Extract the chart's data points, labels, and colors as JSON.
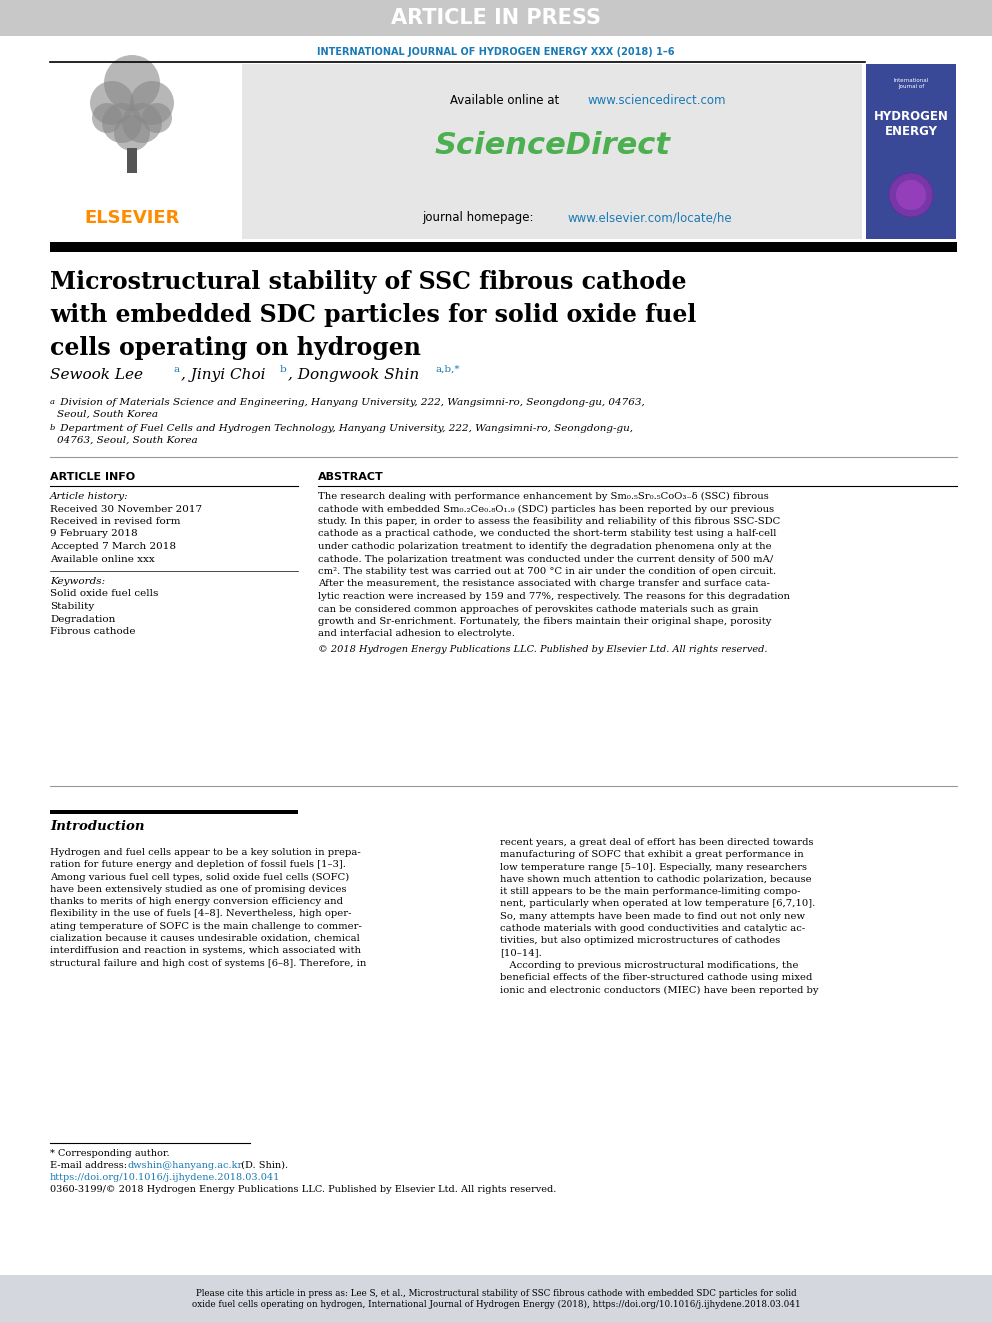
{
  "article_in_press_text": "ARTICLE IN PRESS",
  "article_in_press_bg": "#c8c8c8",
  "journal_name": "INTERNATIONAL JOURNAL OF HYDROGEN ENERGY XXX (2018) 1–6",
  "journal_color": "#1a7ab5",
  "sciencedirect_url": "www.sciencedirect.com",
  "sciencedirect_logo": "ScienceDirect",
  "sciencedirect_color": "#4caf50",
  "journal_homepage_url": "www.elsevier.com/locate/he",
  "elsevier_color": "#ff8c00",
  "header_bg": "#e6e6e6",
  "paper_title_line1": "Microstructural stability of SSC fibrous cathode",
  "paper_title_line2": "with embedded SDC particles for solid oxide fuel",
  "paper_title_line3": "cells operating on hydrogen",
  "affil_a_sup": "a",
  "affil_a": " Division of Materials Science and Engineering, Hanyang University, 222, Wangsimni-ro, Seongdong-gu, 04763,",
  "affil_a2": "Seoul, South Korea",
  "affil_b_sup": "b",
  "affil_b": " Department of Fuel Cells and Hydrogen Technology, Hanyang University, 222, Wangsimni-ro, Seongdong-gu,",
  "affil_b2": "04763, Seoul, South Korea",
  "article_info_title": "ARTICLE INFO",
  "article_history_title": "Article history:",
  "received_text": "Received 30 November 2017",
  "revised_text1": "Received in revised form",
  "revised_text2": "9 February 2018",
  "accepted_text": "Accepted 7 March 2018",
  "available_text": "Available online xxx",
  "keywords_title": "Keywords:",
  "keywords": [
    "Solid oxide fuel cells",
    "Stability",
    "Degradation",
    "Fibrous cathode"
  ],
  "abstract_title": "ABSTRACT",
  "abstract_lines": [
    "The research dealing with performance enhancement by Sm₀.₅Sr₀.₅CoO₃₋δ (SSC) fibrous",
    "cathode with embedded Sm₀.₂Ce₀.₈O₁.₉ (SDC) particles has been reported by our previous",
    "study. In this paper, in order to assess the feasibility and reliability of this fibrous SSC-SDC",
    "cathode as a practical cathode, we conducted the short-term stability test using a half-cell",
    "under cathodic polarization treatment to identify the degradation phenomena only at the",
    "cathode. The polarization treatment was conducted under the current density of 500 mA/",
    "cm². The stability test was carried out at 700 °C in air under the condition of open circuit.",
    "After the measurement, the resistance associated with charge transfer and surface cata-",
    "lytic reaction were increased by 159 and 77%, respectively. The reasons for this degradation",
    "can be considered common approaches of perovskites cathode materials such as grain",
    "growth and Sr-enrichment. Fortunately, the fibers maintain their original shape, porosity",
    "and interfacial adhesion to electrolyte."
  ],
  "copyright_text": "© 2018 Hydrogen Energy Publications LLC. Published by Elsevier Ltd. All rights reserved.",
  "intro_title": "Introduction",
  "intro_col1_lines": [
    "Hydrogen and fuel cells appear to be a key solution in prepa-",
    "ration for future energy and depletion of fossil fuels [1–3].",
    "Among various fuel cell types, solid oxide fuel cells (SOFC)",
    "have been extensively studied as one of promising devices",
    "thanks to merits of high energy conversion efficiency and",
    "flexibility in the use of fuels [4–8]. Nevertheless, high oper-",
    "ating temperature of SOFC is the main challenge to commer-",
    "cialization because it causes undesirable oxidation, chemical",
    "interdiffusion and reaction in systems, which associated with",
    "structural failure and high cost of systems [6–8]. Therefore, in"
  ],
  "intro_col2_lines": [
    "recent years, a great deal of effort has been directed towards",
    "manufacturing of SOFC that exhibit a great performance in",
    "low temperature range [5–10]. Especially, many researchers",
    "have shown much attention to cathodic polarization, because",
    "it still appears to be the main performance-limiting compo-",
    "nent, particularly when operated at low temperature [6,7,10].",
    "So, many attempts have been made to find out not only new",
    "cathode materials with good conductivities and catalytic ac-",
    "tivities, but also optimized microstructures of cathodes",
    "[10–14].",
    "   According to previous microstructural modifications, the",
    "beneficial effects of the fiber-structured cathode using mixed",
    "ionic and electronic conductors (MIEC) have been reported by"
  ],
  "footnote_star": "* Corresponding author.",
  "footnote_email_pre": "E-mail address: ",
  "footnote_email_link": "dwshin@hanyang.ac.kr",
  "footnote_email_post": " (D. Shin).",
  "footnote_doi": "https://doi.org/10.1016/j.ijhydene.2018.03.041",
  "footnote_issn": "0360-3199/© 2018 Hydrogen Energy Publications LLC. Published by Elsevier Ltd. All rights reserved.",
  "bottom_cite": "Please cite this article in press as: Lee S, et al., Microstructural stability of SSC fibrous cathode with embedded SDC particles for solid oxide\noxide fuel cells operating on hydrogen, International Journal of Hydrogen Energy (2018), https://doi.org/10.1016/j.ijhydene.2018.03.041",
  "bottom_bar_color": "#d4d8de",
  "link_color": "#1a7ab5",
  "cover_bg": "#3a4898"
}
